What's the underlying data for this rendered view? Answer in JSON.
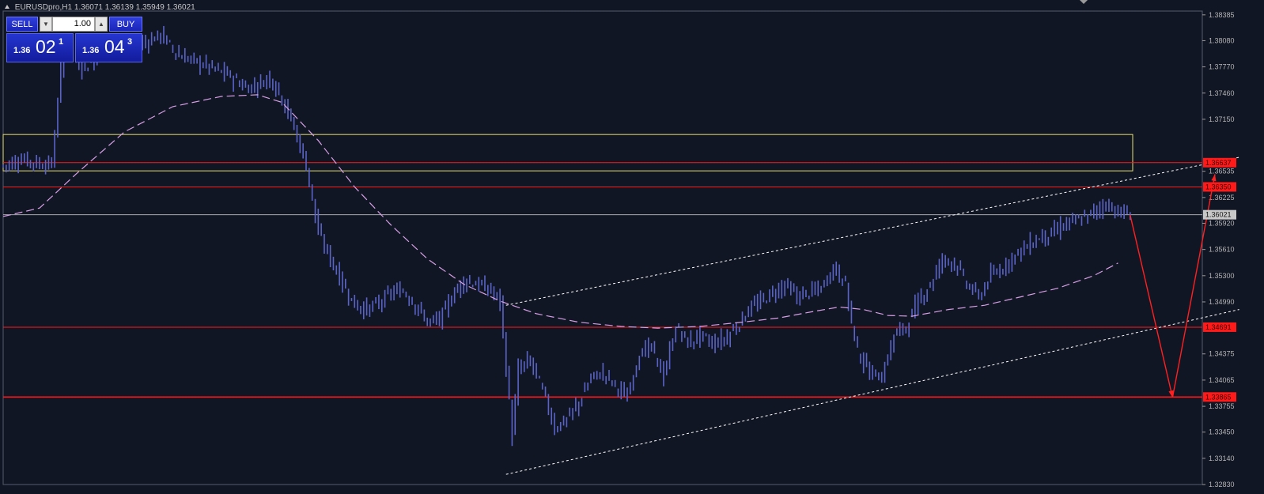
{
  "header": {
    "symbol": "EURUSDpro,H1",
    "ohlc": "1.36071 1.36139 1.35949 1.36021"
  },
  "trade_panel": {
    "sell_label": "SELL",
    "buy_label": "BUY",
    "lot": "1.00",
    "bid": {
      "prefix": "1.36",
      "big": "02",
      "pip": "1"
    },
    "ask": {
      "prefix": "1.36",
      "big": "04",
      "pip": "3"
    }
  },
  "colors": {
    "background": "#111624",
    "candle": "#5a64c8",
    "moving_average": "#d8a0e6",
    "level_line": "#ff1a1a",
    "zone": "#e8e070",
    "channel": "#ffffff",
    "forecast": "#ff2020",
    "current_price": "#bfbfbf"
  },
  "chart_data": {
    "type": "candlestick",
    "symbol": "EURUSDpro",
    "timeframe": "H1",
    "ylim": [
      1.3283,
      1.3843
    ],
    "y_ticks": [
      "1.38385",
      "1.38080",
      "1.37770",
      "1.37460",
      "1.37150",
      "1.36535",
      "1.36225",
      "1.35920",
      "1.35610",
      "1.35300",
      "1.34990",
      "1.34375",
      "1.34065",
      "1.33755",
      "1.33450",
      "1.33140",
      "1.32830"
    ],
    "current_price": "1.36021",
    "price_levels": [
      "1.36637",
      "1.36350",
      "1.34691",
      "1.33865"
    ],
    "zone": [
      "1.36540",
      "1.36970"
    ],
    "close_path": [
      [
        0,
        1.366
      ],
      [
        3,
        1.3668
      ],
      [
        6,
        1.3662
      ],
      [
        8,
        1.3662
      ],
      [
        10,
        1.381
      ],
      [
        13,
        1.3775
      ],
      [
        16,
        1.379
      ],
      [
        20,
        1.38
      ],
      [
        24,
        1.3808
      ],
      [
        26,
        1.3815
      ],
      [
        29,
        1.379
      ],
      [
        33,
        1.378
      ],
      [
        37,
        1.3768
      ],
      [
        40,
        1.3752
      ],
      [
        42,
        1.3756
      ],
      [
        44,
        1.3765
      ],
      [
        46,
        1.374
      ],
      [
        48,
        1.3705
      ],
      [
        50,
        1.366
      ],
      [
        52,
        1.358
      ],
      [
        54,
        1.355
      ],
      [
        56,
        1.352
      ],
      [
        58,
        1.3495
      ],
      [
        60,
        1.349
      ],
      [
        62,
        1.3498
      ],
      [
        64,
        1.351
      ],
      [
        66,
        1.3512
      ],
      [
        68,
        1.3495
      ],
      [
        70,
        1.3475
      ],
      [
        72,
        1.3478
      ],
      [
        74,
        1.3505
      ],
      [
        76,
        1.3525
      ],
      [
        78,
        1.352
      ],
      [
        80,
        1.3515
      ],
      [
        82,
        1.35
      ],
      [
        83,
        1.342
      ],
      [
        84,
        1.334
      ],
      [
        85,
        1.342
      ],
      [
        87,
        1.343
      ],
      [
        89,
        1.3395
      ],
      [
        91,
        1.335
      ],
      [
        93,
        1.336
      ],
      [
        95,
        1.338
      ],
      [
        97,
        1.341
      ],
      [
        99,
        1.3415
      ],
      [
        101,
        1.34
      ],
      [
        103,
        1.3385
      ],
      [
        105,
        1.344
      ],
      [
        107,
        1.3445
      ],
      [
        109,
        1.341
      ],
      [
        111,
        1.347
      ],
      [
        113,
        1.345
      ],
      [
        115,
        1.346
      ],
      [
        117,
        1.345
      ],
      [
        119,
        1.3455
      ],
      [
        121,
        1.347
      ],
      [
        123,
        1.349
      ],
      [
        125,
        1.35
      ],
      [
        127,
        1.351
      ],
      [
        129,
        1.352
      ],
      [
        131,
        1.3505
      ],
      [
        133,
        1.351
      ],
      [
        135,
        1.3515
      ],
      [
        137,
        1.354
      ],
      [
        139,
        1.352
      ],
      [
        140,
        1.3475
      ],
      [
        141,
        1.344
      ],
      [
        143,
        1.3415
      ],
      [
        145,
        1.341
      ],
      [
        147,
        1.346
      ],
      [
        149,
        1.347
      ],
      [
        151,
        1.35
      ],
      [
        153,
        1.352
      ],
      [
        155,
        1.355
      ],
      [
        157,
        1.3545
      ],
      [
        159,
        1.352
      ],
      [
        161,
        1.3505
      ],
      [
        163,
        1.353
      ],
      [
        165,
        1.354
      ],
      [
        167,
        1.3555
      ],
      [
        169,
        1.3565
      ],
      [
        171,
        1.3575
      ],
      [
        173,
        1.358
      ],
      [
        175,
        1.359
      ],
      [
        177,
        1.3595
      ],
      [
        179,
        1.36
      ],
      [
        180,
        1.3606
      ],
      [
        182,
        1.3615
      ],
      [
        184,
        1.3605
      ],
      [
        186,
        1.3602
      ]
    ],
    "moving_average": [
      [
        0,
        1.36
      ],
      [
        6,
        1.361
      ],
      [
        12,
        1.365
      ],
      [
        20,
        1.37
      ],
      [
        28,
        1.373
      ],
      [
        36,
        1.3742
      ],
      [
        42,
        1.3744
      ],
      [
        46,
        1.3735
      ],
      [
        52,
        1.369
      ],
      [
        58,
        1.3635
      ],
      [
        64,
        1.359
      ],
      [
        70,
        1.355
      ],
      [
        76,
        1.352
      ],
      [
        82,
        1.35
      ],
      [
        88,
        1.3485
      ],
      [
        95,
        1.3475
      ],
      [
        102,
        1.347
      ],
      [
        108,
        1.3468
      ],
      [
        115,
        1.347
      ],
      [
        122,
        1.3475
      ],
      [
        128,
        1.348
      ],
      [
        134,
        1.3488
      ],
      [
        138,
        1.3493
      ],
      [
        142,
        1.349
      ],
      [
        146,
        1.3483
      ],
      [
        150,
        1.3482
      ],
      [
        156,
        1.349
      ],
      [
        162,
        1.3495
      ],
      [
        168,
        1.3505
      ],
      [
        174,
        1.3515
      ],
      [
        180,
        1.353
      ],
      [
        184,
        1.3545
      ]
    ],
    "channel": {
      "upper": [
        [
          83,
          1.3495
        ],
        [
          204,
          1.367
        ]
      ],
      "lower": [
        [
          83,
          1.3295
        ],
        [
          204,
          1.349
        ]
      ]
    },
    "forecast": [
      [
        186,
        1.3602
      ],
      [
        193,
        1.3386
      ],
      [
        200,
        1.365
      ]
    ]
  }
}
